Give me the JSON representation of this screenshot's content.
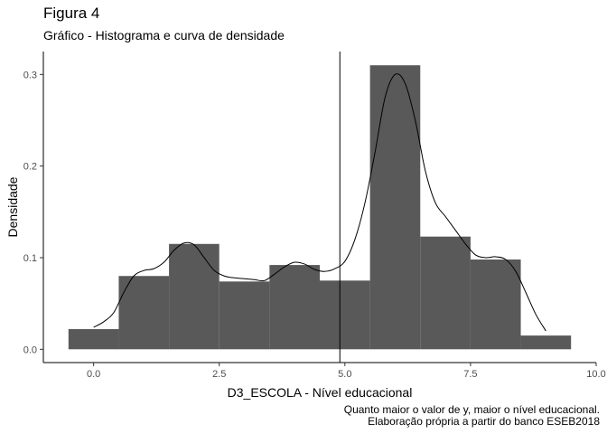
{
  "chart_data": {
    "type": "bar",
    "title": "Figura 4",
    "subtitle": "Gráfico - Histograma e curva de densidade",
    "xlabel": "D3_ESCOLA - Nível educacional",
    "ylabel": "Densidade",
    "xlim": [
      -0.5,
      9.5
    ],
    "ylim": [
      0,
      0.32
    ],
    "x_ticks": [
      0.0,
      2.5,
      5.0,
      7.5,
      10.0
    ],
    "x_tick_labels": [
      "0.0",
      "2.5",
      "5.0",
      "7.5",
      "10.0"
    ],
    "y_ticks": [
      0.0,
      0.1,
      0.2,
      0.3
    ],
    "y_tick_labels": [
      "0.0",
      "0.1",
      "0.2",
      "0.3"
    ],
    "grid": false,
    "bins": [
      {
        "x0": -0.5,
        "x1": 0.5,
        "density": 0.022
      },
      {
        "x0": 0.5,
        "x1": 1.5,
        "density": 0.08
      },
      {
        "x0": 1.5,
        "x1": 2.5,
        "density": 0.115
      },
      {
        "x0": 2.5,
        "x1": 3.5,
        "density": 0.074
      },
      {
        "x0": 3.5,
        "x1": 4.5,
        "density": 0.092
      },
      {
        "x0": 4.5,
        "x1": 5.5,
        "density": 0.075
      },
      {
        "x0": 5.5,
        "x1": 6.5,
        "density": 0.31
      },
      {
        "x0": 6.5,
        "x1": 7.5,
        "density": 0.123
      },
      {
        "x0": 7.5,
        "x1": 8.5,
        "density": 0.098
      },
      {
        "x0": 8.5,
        "x1": 9.5,
        "density": 0.015
      }
    ],
    "vline_x": 4.9,
    "density_curve": {
      "x": [
        0.0,
        0.2,
        0.4,
        0.6,
        0.8,
        1.0,
        1.2,
        1.4,
        1.6,
        1.8,
        2.0,
        2.2,
        2.4,
        2.6,
        2.8,
        3.0,
        3.2,
        3.4,
        3.6,
        3.8,
        4.0,
        4.2,
        4.4,
        4.6,
        4.8,
        5.0,
        5.2,
        5.4,
        5.6,
        5.8,
        6.0,
        6.2,
        6.4,
        6.6,
        6.8,
        7.0,
        7.2,
        7.4,
        7.6,
        7.8,
        8.0,
        8.2,
        8.4,
        8.6,
        8.8,
        9.0
      ],
      "y": [
        0.024,
        0.03,
        0.04,
        0.062,
        0.08,
        0.086,
        0.088,
        0.095,
        0.108,
        0.116,
        0.114,
        0.1,
        0.086,
        0.08,
        0.078,
        0.077,
        0.076,
        0.075,
        0.082,
        0.09,
        0.095,
        0.093,
        0.087,
        0.085,
        0.088,
        0.096,
        0.12,
        0.16,
        0.215,
        0.275,
        0.3,
        0.29,
        0.25,
        0.195,
        0.16,
        0.145,
        0.13,
        0.115,
        0.103,
        0.1,
        0.101,
        0.098,
        0.085,
        0.062,
        0.038,
        0.02
      ]
    }
  },
  "captions": {
    "line1": "Quanto maior o valor de y, maior o nível educacional.",
    "line2": "Elaboração própria a partir do banco ESEB2018"
  },
  "colors": {
    "bar_fill": "#595959",
    "curve": "#000000",
    "axis": "#000000"
  }
}
